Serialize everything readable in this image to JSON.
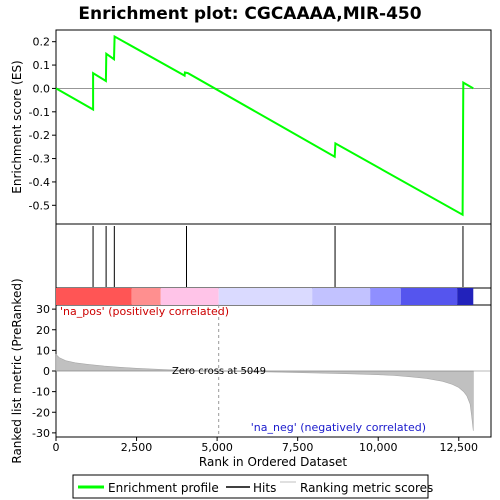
{
  "chart_data": {
    "type": "line",
    "title": "Enrichment plot: CGCAAAA,MIR-450",
    "es_panel": {
      "ylabel": "Enrichment score (ES)",
      "ylim": [
        -0.58,
        0.25
      ],
      "yticks": [
        -0.5,
        -0.4,
        -0.3,
        -0.2,
        -0.1,
        0.0,
        0.1,
        0.2
      ],
      "ytick_labels": [
        "-0.5",
        "-0.4",
        "-0.3",
        "-0.2",
        "-0.1",
        "0.0",
        "0.1",
        "0.2"
      ],
      "series": [
        {
          "name": "Enrichment profile",
          "color": "#00ff00",
          "x": [
            0,
            1150,
            1150,
            1550,
            1560,
            1800,
            1820,
            3990,
            4000,
            4100,
            8650,
            8670,
            12620,
            12640,
            12950
          ],
          "y": [
            0.0,
            -0.09,
            0.065,
            0.032,
            0.148,
            0.125,
            0.222,
            0.055,
            0.068,
            0.065,
            -0.292,
            -0.235,
            -0.54,
            0.025,
            0.0
          ]
        }
      ]
    },
    "hits": {
      "name": "Hits",
      "positions": [
        1150,
        1555,
        1810,
        4050,
        8660,
        12630
      ]
    },
    "metric_panel": {
      "ylabel": "Ranked list metric (PreRanked)",
      "ylim": [
        -32,
        32
      ],
      "yticks": [
        -30,
        -20,
        -10,
        0,
        10,
        20,
        30
      ],
      "ytick_labels": [
        "-30",
        "-20",
        "-10",
        "0",
        "10",
        "20",
        "30"
      ],
      "series_name": "Ranking metric scores",
      "curve": {
        "x": [
          0,
          100,
          300,
          600,
          1000,
          1500,
          2000,
          2500,
          3000,
          3500,
          4000,
          4500,
          5049,
          6000,
          7000,
          8000,
          9000,
          10000,
          10500,
          11000,
          11500,
          12000,
          12300,
          12500,
          12650,
          12750,
          12850,
          12900,
          12950
        ],
        "y": [
          8,
          6.5,
          5,
          4,
          3.2,
          2.4,
          1.8,
          1.3,
          0.9,
          0.6,
          0.35,
          0.15,
          0,
          -0.3,
          -0.6,
          -0.9,
          -1.3,
          -1.8,
          -2.2,
          -2.8,
          -3.6,
          -5,
          -6.5,
          -8,
          -10,
          -12,
          -16,
          -22,
          -29
        ]
      },
      "annotations": {
        "pos_label": "'na_pos' (positively correlated)",
        "neg_label": "'na_neg' (negatively correlated)",
        "zero_cross": "Zero cross at 5049"
      },
      "zero_cross_x": 5049
    },
    "xlabel": "Rank in Ordered Dataset",
    "xlim": [
      0,
      13500
    ],
    "xticks": [
      0,
      2500,
      5000,
      7500,
      10000,
      12500
    ],
    "xtick_labels": [
      "0",
      "2,500",
      "5,000",
      "7,500",
      "10,000",
      "12,500"
    ],
    "n_genes": 12950,
    "heatbar": [
      {
        "from": 0,
        "to": 2350,
        "color": "#ff5555"
      },
      {
        "from": 2350,
        "to": 3250,
        "color": "#ff8f8f"
      },
      {
        "from": 3250,
        "to": 5049,
        "color": "#ffc4e8"
      },
      {
        "from": 5049,
        "to": 7950,
        "color": "#dadaff"
      },
      {
        "from": 7950,
        "to": 9750,
        "color": "#c2c2ff"
      },
      {
        "from": 9750,
        "to": 10700,
        "color": "#8f8fff"
      },
      {
        "from": 10700,
        "to": 12450,
        "color": "#5555ee"
      },
      {
        "from": 12450,
        "to": 12950,
        "color": "#2222bb"
      }
    ],
    "legend": {
      "placement": "bottom",
      "entries": [
        {
          "label": "Enrichment profile",
          "color": "#00ff00"
        },
        {
          "label": "Hits",
          "color": "#000000"
        },
        {
          "label": "Ranking metric scores",
          "color": "#c0c0c0"
        }
      ]
    }
  }
}
